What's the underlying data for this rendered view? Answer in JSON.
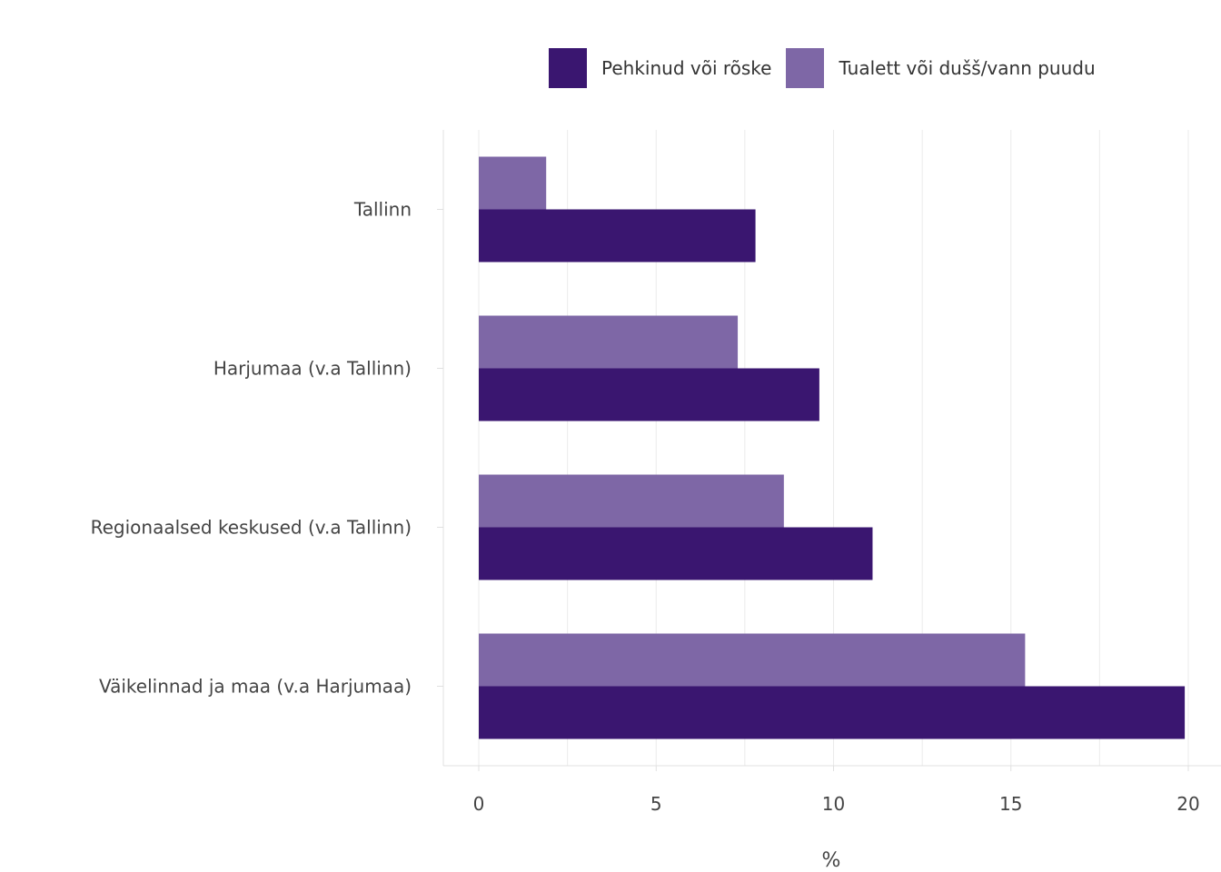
{
  "chart_data": {
    "type": "bar",
    "orientation": "horizontal",
    "categories": [
      "Tallinn",
      "Harjumaa (v.a Tallinn)",
      "Regionaalsed keskused (v.a Tallinn)",
      "Väikelinnad ja maa (v.a Harjumaa)"
    ],
    "series": [
      {
        "name": "Pehkinud või rõske",
        "color": "#3a1670",
        "values": [
          7.8,
          9.6,
          11.1,
          19.9
        ]
      },
      {
        "name": "Tualett või dušš/vann puudu",
        "color": "#7e67a6",
        "values": [
          1.9,
          7.3,
          8.6,
          15.4
        ]
      }
    ],
    "xlabel": "%",
    "ylabel": "",
    "xlim": [
      -1,
      20.9
    ],
    "xticks": [
      0,
      5,
      10,
      15,
      20
    ],
    "grid": true,
    "legend_position": "top"
  }
}
